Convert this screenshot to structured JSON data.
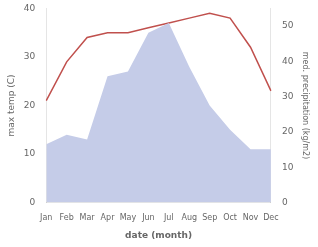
{
  "chart_data": {
    "type": "line",
    "categories": [
      "Jan",
      "Feb",
      "Mar",
      "Apr",
      "May",
      "Jun",
      "Jul",
      "Aug",
      "Sep",
      "Oct",
      "Nov",
      "Dec"
    ],
    "series": [
      {
        "type": "area",
        "color": "#c5cce8",
        "values": [
          12,
          14,
          13,
          26,
          27,
          35,
          37,
          28,
          20,
          15,
          11,
          11
        ]
      },
      {
        "type": "line",
        "color": "#c0504d",
        "values": [
          21,
          29,
          34,
          35,
          35,
          36,
          37,
          38,
          39,
          38,
          32,
          23
        ]
      }
    ],
    "xlabel": "date (month)",
    "ylabel": "max temp (C)",
    "y2label": "med. precipitation (kg/m2)",
    "ylim": [
      0,
      40
    ],
    "yticks": [
      0,
      10,
      20,
      30,
      40
    ],
    "y2lim": [
      0,
      55
    ],
    "y2ticks": [
      0,
      10,
      20,
      30,
      40,
      50
    ],
    "grid": false
  }
}
